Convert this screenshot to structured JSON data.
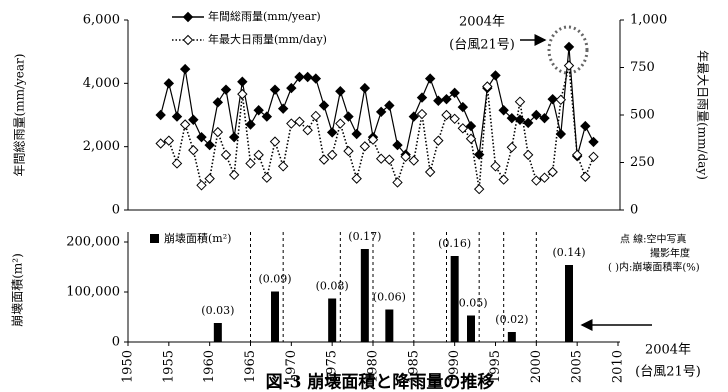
{
  "chart_data": [
    {
      "type": "line",
      "ylabel": "年間総雨量(mm/year)",
      "y2label": "年最大日雨量(mm/day)",
      "x": [
        1954,
        1955,
        1956,
        1957,
        1958,
        1959,
        1960,
        1961,
        1962,
        1963,
        1964,
        1965,
        1966,
        1967,
        1968,
        1969,
        1970,
        1971,
        1972,
        1973,
        1974,
        1975,
        1976,
        1977,
        1978,
        1979,
        1980,
        1981,
        1982,
        1983,
        1984,
        1985,
        1986,
        1987,
        1988,
        1989,
        1990,
        1991,
        1992,
        1993,
        1994,
        1995,
        1996,
        1997,
        1998,
        1999,
        2000,
        2001,
        2002,
        2003,
        2004,
        2005,
        2006,
        2007
      ],
      "xlim": [
        1950,
        2010
      ],
      "ylim": [
        0,
        6000
      ],
      "yticks": [
        0,
        {
          "value": 2000,
          "label": "2,000"
        },
        {
          "value": 4000,
          "label": "4,000"
        },
        {
          "value": 6000,
          "label": "6,000"
        }
      ],
      "y2lim": [
        0,
        1000
      ],
      "y2ticks": [
        0,
        250,
        500,
        750,
        {
          "value": 1000,
          "label": "1,000"
        }
      ],
      "series": [
        {
          "name": "年間総雨量(mm/year)",
          "color": "#000000",
          "style": "solid",
          "marker": "filled",
          "values": [
            3000,
            4000,
            2950,
            4450,
            2850,
            2300,
            2050,
            3400,
            3800,
            2300,
            4050,
            2700,
            3150,
            2950,
            3800,
            3200,
            3850,
            4200,
            4200,
            4150,
            3300,
            2450,
            3750,
            2950,
            2400,
            3850,
            2300,
            3100,
            3300,
            2050,
            1750,
            2950,
            3550,
            4150,
            3450,
            3500,
            3700,
            3250,
            2650,
            1750,
            3850,
            4250,
            3150,
            2900,
            2850,
            2750,
            3000,
            2900,
            3500,
            2400,
            5150,
            1700,
            2650,
            2150
          ]
        },
        {
          "name": "年最大日雨量(mm/day)",
          "color": "#000000",
          "style": "dotted",
          "marker": "open",
          "axis": "y2",
          "values": [
            350,
            365,
            245,
            450,
            315,
            130,
            165,
            410,
            290,
            185,
            610,
            245,
            290,
            170,
            360,
            230,
            455,
            465,
            420,
            495,
            265,
            290,
            455,
            310,
            165,
            335,
            370,
            270,
            265,
            145,
            280,
            260,
            505,
            200,
            365,
            500,
            480,
            430,
            375,
            110,
            650,
            230,
            160,
            330,
            570,
            290,
            155,
            170,
            200,
            580,
            760,
            290,
            175,
            280
          ]
        }
      ],
      "annotations": [
        "2004年",
        "(台風21号)"
      ]
    },
    {
      "type": "bar",
      "ylabel": "崩壊面積(m²)",
      "xlim": [
        1950,
        2010
      ],
      "xticks": [
        1950,
        1955,
        1960,
        1965,
        1970,
        1975,
        1980,
        1985,
        1990,
        1995,
        2000,
        2005,
        2010
      ],
      "ylim": [
        0,
        220000
      ],
      "yticks": [
        0,
        {
          "value": 100000,
          "label": "100,000"
        },
        {
          "value": 200000,
          "label": "200,000"
        }
      ],
      "series": [
        {
          "name": "崩壊面積(m²)",
          "color": "#000000",
          "x": [
            1961,
            1968,
            1975,
            1979,
            1982,
            1990,
            1992,
            1997,
            2004
          ],
          "values": [
            38000,
            101000,
            87000,
            186000,
            65000,
            172000,
            53000,
            20000,
            154000
          ],
          "rates": [
            "(0.03)",
            "(0.09)",
            "(0.08)",
            "(0.17)",
            "(0.06)",
            "(0.16)",
            "(0.05)",
            "(0.02)",
            "(0.14)"
          ]
        }
      ],
      "photo_years": [
        1965,
        1969,
        1976,
        1980,
        1985,
        1989,
        1993,
        1996,
        2000
      ],
      "notes": [
        "点 線:空中写真",
        "撮影年度",
        "( )内:崩壊面積率(%)"
      ],
      "annotations": [
        "2004年",
        "(台風21号)"
      ],
      "caption": "図-3 崩壊面積と降雨量の推移"
    }
  ]
}
